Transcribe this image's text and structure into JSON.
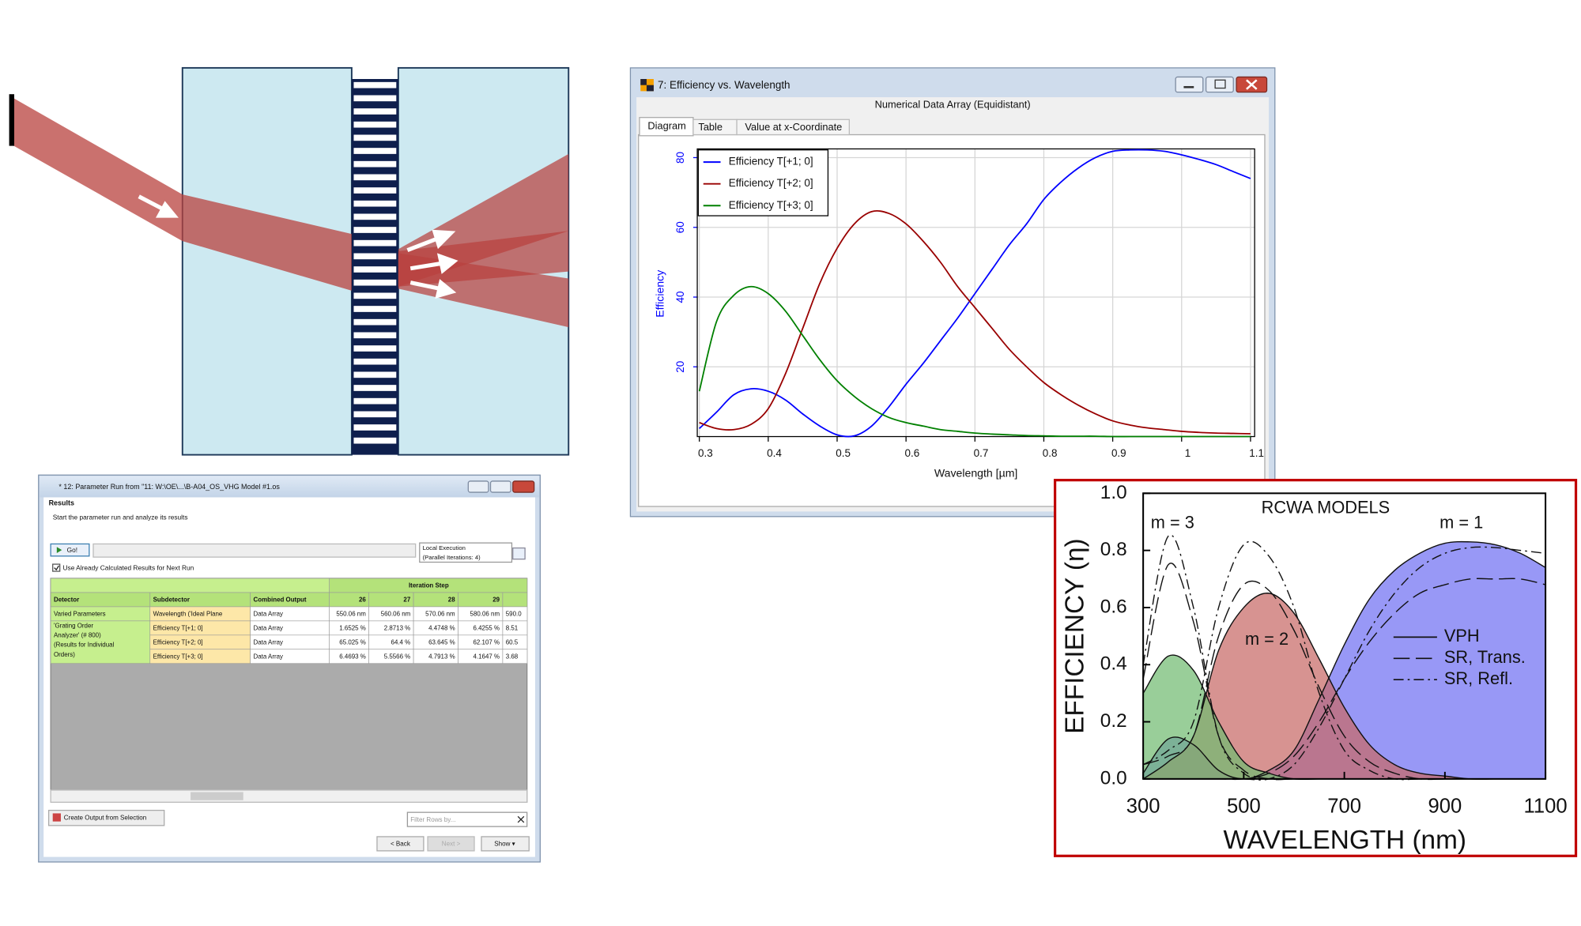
{
  "efficiency_window": {
    "title": "7: Efficiency vs. Wavelength",
    "subtitle": "Numerical Data Array (Equidistant)",
    "tabs": [
      "Diagram",
      "Table",
      "Value at x-Coordinate"
    ]
  },
  "chart_data": [
    {
      "type": "line",
      "x_label": "Wavelength [µm]",
      "y_label": "Efficiency",
      "grid": true,
      "legend": "upper left",
      "xlim": [
        0.297,
        1.106
      ],
      "ylim": [
        0,
        82.5
      ],
      "xticks": [
        0.3,
        0.4,
        0.5,
        0.6,
        0.7,
        0.8,
        0.9,
        1,
        1.1
      ],
      "yticks": [
        20,
        40,
        60,
        80
      ],
      "x": [
        0.3,
        0.325,
        0.35,
        0.375,
        0.4,
        0.425,
        0.45,
        0.475,
        0.5,
        0.525,
        0.55,
        0.575,
        0.6,
        0.625,
        0.65,
        0.675,
        0.7,
        0.725,
        0.75,
        0.775,
        0.8,
        0.825,
        0.85,
        0.875,
        0.9,
        0.925,
        0.95,
        0.975,
        1,
        1.025,
        1.05,
        1.075,
        1.1
      ],
      "series": [
        {
          "name": "Efficiency T[+1; 0]",
          "color": "#0000ff",
          "values": [
            2.3,
            7,
            12,
            13.7,
            13,
            10.5,
            6.5,
            3,
            0.5,
            0.2,
            3,
            8.5,
            15,
            21,
            27.5,
            34,
            41,
            48,
            55,
            61,
            68,
            73,
            77,
            80,
            81.8,
            82.2,
            82.2,
            81.8,
            80.8,
            79.5,
            78,
            76,
            74
          ]
        },
        {
          "name": "Efficiency T[+2; 0]",
          "color": "#990000",
          "values": [
            4,
            2.3,
            2,
            3.5,
            8,
            18,
            31,
            44,
            54,
            61,
            64.5,
            64,
            61,
            56,
            50,
            43,
            37,
            31,
            25,
            20,
            15.5,
            12,
            9,
            6.5,
            4.5,
            3.3,
            2.5,
            2,
            1.5,
            1.2,
            1,
            0.9,
            0.8
          ]
        },
        {
          "name": "Efficiency T[+3; 0]",
          "color": "#008000",
          "values": [
            13,
            33,
            40.5,
            43,
            41,
            36,
            29,
            22,
            16,
            11.5,
            8,
            5.5,
            4,
            3,
            2,
            1.5,
            1,
            0.7,
            0.5,
            0.3,
            0.2,
            0.1,
            0.1,
            0.1,
            0,
            0,
            0,
            0,
            0,
            0,
            0,
            0,
            0
          ]
        }
      ]
    },
    {
      "type": "area",
      "title": "RCWA MODELS",
      "x_label": "WAVELENGTH (nm)",
      "y_label": "EFFICIENCY (η)",
      "legend": "center right",
      "xlim": [
        300,
        1100
      ],
      "ylim": [
        0,
        1
      ],
      "xticks": [
        300,
        500,
        700,
        900,
        1100
      ],
      "yticks": [
        {
          "value": 0,
          "label": "0.0"
        },
        0.2,
        0.4,
        0.6,
        0.8,
        {
          "value": 1,
          "label": "1.0"
        }
      ],
      "x": [
        300,
        350,
        400,
        450,
        500,
        550,
        600,
        650,
        700,
        750,
        800,
        850,
        900,
        950,
        1000,
        1050,
        1100
      ],
      "orders": [
        {
          "label": "m = 1",
          "color": "#7070f2"
        },
        {
          "label": "m = 2",
          "color": "#c86a66"
        },
        {
          "label": "m = 3",
          "color": "#72bb72"
        }
      ],
      "series": [
        {
          "name": "VPH",
          "dash": "none",
          "fill": true,
          "orders": [
            [
              0.02,
              0.14,
              0.12,
              0.03,
              0,
              0.03,
              0.1,
              0.28,
              0.47,
              0.63,
              0.73,
              0.79,
              0.825,
              0.83,
              0.82,
              0.79,
              0.74
            ],
            [
              0,
              0.06,
              0.15,
              0.45,
              0.6,
              0.65,
              0.58,
              0.42,
              0.25,
              0.12,
              0.05,
              0.02,
              0.01,
              0,
              0,
              0,
              0
            ],
            [
              0.3,
              0.43,
              0.38,
              0.2,
              0.06,
              0.02,
              0,
              0,
              0,
              0,
              0,
              0,
              0,
              0,
              0,
              0,
              0
            ]
          ]
        },
        {
          "name": "SR, Trans.",
          "dash": "16 6",
          "fill": false,
          "orders": [
            [
              0,
              0,
              0,
              0,
              0,
              0.02,
              0.08,
              0.2,
              0.35,
              0.48,
              0.58,
              0.65,
              0.68,
              0.7,
              0.7,
              0.7,
              0.68
            ],
            [
              0.05,
              0.08,
              0.15,
              0.5,
              0.68,
              0.66,
              0.52,
              0.32,
              0.15,
              0.06,
              0.02,
              0,
              0,
              0,
              0,
              0,
              0
            ],
            [
              0.35,
              0.75,
              0.55,
              0.15,
              0.03,
              0,
              0,
              0,
              0,
              0,
              0,
              0,
              0,
              0,
              0,
              0,
              0
            ]
          ]
        },
        {
          "name": "SR, Refl.",
          "dash": "10 4 2 4",
          "fill": false,
          "orders": [
            [
              0,
              0,
              0,
              0,
              0,
              0,
              0.05,
              0.18,
              0.35,
              0.52,
              0.65,
              0.74,
              0.79,
              0.81,
              0.81,
              0.8,
              0.79
            ],
            [
              0.05,
              0.1,
              0.2,
              0.6,
              0.82,
              0.78,
              0.6,
              0.3,
              0.1,
              0.03,
              0,
              0,
              0,
              0,
              0,
              0,
              0
            ],
            [
              0.4,
              0.85,
              0.6,
              0.15,
              0.02,
              0,
              0,
              0,
              0,
              0,
              0,
              0,
              0,
              0,
              0,
              0,
              0
            ]
          ]
        }
      ]
    }
  ],
  "parameter_run": {
    "title": "* 12: Parameter Run from \"11: W:\\OE\\...\\B-A04_OS_VHG Model #1.os",
    "heading": "Results",
    "description": "Start the parameter run and analyze its results",
    "go": "Go!",
    "checkbox": "Use Already Calculated Results for Next Run",
    "execution": [
      "Local Execution",
      "(Parallel Iterations: 4)"
    ],
    "table": {
      "group_header": "Iteration Step",
      "columns": [
        "Detector",
        "Subdetector",
        "Combined Output",
        "26",
        "27",
        "28",
        "29"
      ],
      "varied": [
        "Varied Parameters",
        "Wavelength ('Ideal Plane",
        "Data Array",
        "550.06 nm",
        "560.06 nm",
        "570.06 nm",
        "580.06 nm",
        "590.0"
      ],
      "detector_lines": [
        "'Grating Order",
        "Analyzer' (# 800)",
        "(Results for Individual",
        "Orders)"
      ],
      "results": [
        [
          "Efficiency T[+1; 0]",
          "Data Array",
          "1.6525 %",
          "2.8713 %",
          "4.4748 %",
          "6.4255 %",
          "8.51"
        ],
        [
          "Efficiency T[+2; 0]",
          "Data Array",
          "65.025 %",
          "64.4 %",
          "63.645 %",
          "62.107 %",
          "60.5"
        ],
        [
          "Efficiency T[+3; 0]",
          "Data Array",
          "6.4693 %",
          "5.5566 %",
          "4.7913 %",
          "4.1647 %",
          "3.68"
        ]
      ]
    },
    "create_output": "Create Output from Selection",
    "filter": "Filter Rows by...",
    "buttons": [
      "< Back",
      "Next >",
      "Show ▾"
    ]
  }
}
